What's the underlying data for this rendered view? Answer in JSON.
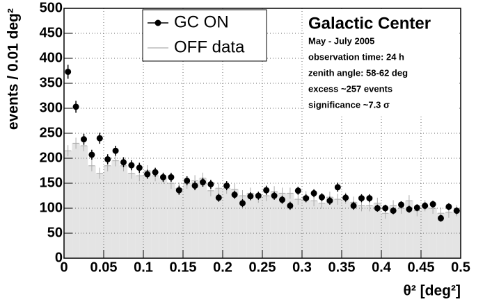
{
  "chart_data": {
    "type": "histogram-points",
    "xlabel": "θ² [deg²]",
    "ylabel": "events / 0.01 deg²",
    "annotations": [
      "Galactic Center",
      "May - July 2005",
      "observation time: 24 h",
      "zenith angle: 58-62 deg",
      "excess ~257 events",
      "significance ~7.3 σ"
    ],
    "bins": [
      0,
      0.01,
      0.02,
      0.03,
      0.04,
      0.05,
      0.06,
      0.07,
      0.08,
      0.09,
      0.1,
      0.11,
      0.12,
      0.13,
      0.14,
      0.15,
      0.16,
      0.17,
      0.18,
      0.19,
      0.2,
      0.21,
      0.22,
      0.23,
      0.24,
      0.25,
      0.26,
      0.27,
      0.28,
      0.29,
      0.3,
      0.31,
      0.32,
      0.33,
      0.34,
      0.35,
      0.36,
      0.37,
      0.38,
      0.39,
      0.4,
      0.41,
      0.42,
      0.43,
      0.44,
      0.45,
      0.46,
      0.47,
      0.48,
      0.49,
      0.5
    ],
    "series": [
      {
        "name": "GC ON",
        "color": "#000000",
        "style": "points",
        "values": [
          373,
          303,
          238,
          207,
          240,
          198,
          215,
          192,
          186,
          181,
          168,
          172,
          162,
          162,
          136,
          155,
          145,
          152,
          148,
          121,
          145,
          127,
          110,
          124,
          125,
          136,
          125,
          117,
          105,
          135,
          120,
          130,
          122,
          115,
          142,
          121,
          105,
          120,
          120,
          100,
          100,
          95,
          107,
          98,
          101,
          105,
          108,
          80,
          103,
          95
        ],
        "errors": [
          14,
          12,
          11,
          10,
          11,
          10,
          10,
          10,
          10,
          10,
          9,
          9,
          9,
          9,
          9,
          9,
          9,
          9,
          9,
          8,
          9,
          8,
          8,
          8,
          8,
          9,
          8,
          8,
          8,
          8,
          8,
          8,
          8,
          8,
          9,
          8,
          8,
          8,
          8,
          7,
          7,
          7,
          7,
          7,
          7,
          7,
          7,
          7,
          7,
          7
        ]
      },
      {
        "name": "OFF data",
        "color": "#bbbbbb",
        "style": "filled",
        "values": [
          215,
          230,
          225,
          185,
          170,
          185,
          195,
          185,
          170,
          165,
          175,
          165,
          160,
          150,
          140,
          150,
          155,
          160,
          135,
          140,
          140,
          138,
          125,
          130,
          122,
          125,
          133,
          130,
          130,
          118,
          123,
          115,
          110,
          122,
          118,
          120,
          112,
          105,
          105,
          110,
          90,
          105,
          100,
          115,
          95,
          105,
          100,
          90,
          92,
          95
        ]
      }
    ],
    "xlim": [
      0,
      0.5
    ],
    "xticks": [
      0,
      0.05,
      0.1,
      0.15,
      0.2,
      0.25,
      0.3,
      0.35,
      0.4,
      0.45,
      0.5
    ],
    "ylim": [
      0,
      500
    ],
    "yticks": [
      0,
      50,
      100,
      150,
      200,
      250,
      300,
      350,
      400,
      450,
      500
    ],
    "grid": true
  }
}
